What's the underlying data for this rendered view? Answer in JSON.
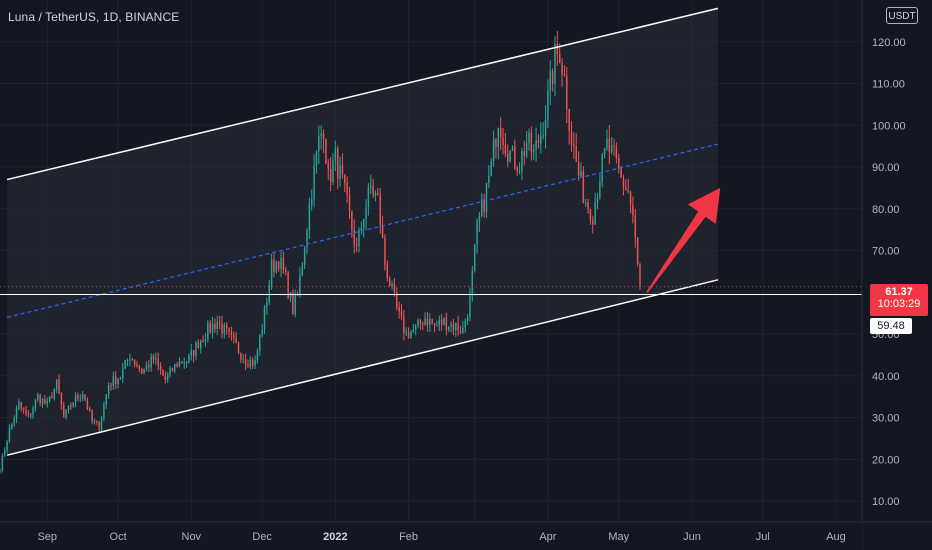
{
  "header": {
    "symbol_title": "Luna / TetherUS, 1D, BINANCE",
    "currency": "USDT"
  },
  "last_price": {
    "value": "61.37",
    "countdown": "10:03:29"
  },
  "horizontal_line": {
    "value": "59.48"
  },
  "colors": {
    "background": "#131722",
    "up_candle": "#26a69a",
    "down_candle": "#ef5350",
    "channel_lines": "#ffffff",
    "channel_fill": "#2a2e39",
    "midline": "#2962ff",
    "arrow": "#f23645",
    "price_line": "#f23645"
  },
  "chart_data": {
    "type": "candlestick",
    "title": "Luna / TetherUS, 1D, BINANCE",
    "y_unit": "USDT",
    "ylim": [
      5,
      130
    ],
    "y_ticks": [
      10,
      20,
      30,
      40,
      50,
      60,
      70,
      80,
      90,
      100,
      110,
      120
    ],
    "y_tick_labels": [
      "10.00",
      "20.00",
      "30.00",
      "40.00",
      "50.00",
      "60.00",
      "70.00",
      "80.00",
      "90.00",
      "100.00",
      "110.00",
      "120.00"
    ],
    "x_range": [
      "2021-08-12",
      "2022-08-12"
    ],
    "x_ticks": [
      "2021-09-01",
      "2021-10-01",
      "2021-11-01",
      "2021-12-01",
      "2022-01-01",
      "2022-02-01",
      "2022-03-01",
      "2022-04-01",
      "2022-05-01",
      "2022-06-01",
      "2022-07-01",
      "2022-08-01"
    ],
    "x_tick_labels": [
      "Sep",
      "Oct",
      "Nov",
      "Dec",
      "2022",
      "Feb",
      "",
      "Apr",
      "May",
      "Jun",
      "Jul",
      "Aug"
    ],
    "price_anchors": [
      [
        "2021-08-12",
        18
      ],
      [
        "2021-08-16",
        27
      ],
      [
        "2021-08-20",
        33
      ],
      [
        "2021-08-24",
        30
      ],
      [
        "2021-08-28",
        35
      ],
      [
        "2021-09-01",
        33
      ],
      [
        "2021-09-05",
        38
      ],
      [
        "2021-09-08",
        30
      ],
      [
        "2021-09-12",
        34
      ],
      [
        "2021-09-16",
        36
      ],
      [
        "2021-09-20",
        29
      ],
      [
        "2021-09-23",
        28
      ],
      [
        "2021-09-27",
        38
      ],
      [
        "2021-10-02",
        40
      ],
      [
        "2021-10-06",
        45
      ],
      [
        "2021-10-11",
        41
      ],
      [
        "2021-10-16",
        44
      ],
      [
        "2021-10-21",
        39
      ],
      [
        "2021-10-26",
        43
      ],
      [
        "2021-10-31",
        44
      ],
      [
        "2021-11-04",
        48
      ],
      [
        "2021-11-08",
        51
      ],
      [
        "2021-11-12",
        53
      ],
      [
        "2021-11-16",
        50
      ],
      [
        "2021-11-20",
        47
      ],
      [
        "2021-11-24",
        44
      ],
      [
        "2021-11-28",
        43
      ],
      [
        "2021-12-02",
        55
      ],
      [
        "2021-12-05",
        66
      ],
      [
        "2021-12-08",
        68
      ],
      [
        "2021-12-11",
        63
      ],
      [
        "2021-12-14",
        56
      ],
      [
        "2021-12-16",
        59
      ],
      [
        "2021-12-19",
        72
      ],
      [
        "2021-12-22",
        85
      ],
      [
        "2021-12-25",
        96
      ],
      [
        "2021-12-27",
        100
      ],
      [
        "2021-12-29",
        87
      ],
      [
        "2022-01-01",
        92
      ],
      [
        "2022-01-04",
        86
      ],
      [
        "2022-01-07",
        78
      ],
      [
        "2022-01-10",
        70
      ],
      [
        "2022-01-13",
        79
      ],
      [
        "2022-01-16",
        85
      ],
      [
        "2022-01-19",
        82
      ],
      [
        "2022-01-22",
        67
      ],
      [
        "2022-01-25",
        60
      ],
      [
        "2022-01-28",
        54
      ],
      [
        "2022-01-31",
        50
      ],
      [
        "2022-02-04",
        51
      ],
      [
        "2022-02-08",
        54
      ],
      [
        "2022-02-12",
        52
      ],
      [
        "2022-02-16",
        53
      ],
      [
        "2022-02-20",
        52
      ],
      [
        "2022-02-24",
        51
      ],
      [
        "2022-02-27",
        58
      ],
      [
        "2022-03-02",
        75
      ],
      [
        "2022-03-05",
        82
      ],
      [
        "2022-03-08",
        90
      ],
      [
        "2022-03-11",
        102
      ],
      [
        "2022-03-14",
        96
      ],
      [
        "2022-03-17",
        92
      ],
      [
        "2022-03-20",
        91
      ],
      [
        "2022-03-23",
        96
      ],
      [
        "2022-03-26",
        93
      ],
      [
        "2022-03-29",
        98
      ],
      [
        "2022-04-01",
        106
      ],
      [
        "2022-04-04",
        116
      ],
      [
        "2022-04-06",
        118
      ],
      [
        "2022-04-08",
        111
      ],
      [
        "2022-04-11",
        97
      ],
      [
        "2022-04-14",
        88
      ],
      [
        "2022-04-17",
        82
      ],
      [
        "2022-04-20",
        79
      ],
      [
        "2022-04-23",
        88
      ],
      [
        "2022-04-26",
        95
      ],
      [
        "2022-04-29",
        92
      ],
      [
        "2022-05-02",
        87
      ],
      [
        "2022-05-05",
        84
      ],
      [
        "2022-05-07",
        78
      ],
      [
        "2022-05-09",
        66
      ],
      [
        "2022-05-10",
        61.37
      ]
    ],
    "annotations": {
      "channel_upper_line": {
        "from": [
          "2021-08-15",
          87
        ],
        "to": [
          "2022-06-12",
          128
        ]
      },
      "channel_lower_line": {
        "from": [
          "2021-08-15",
          21
        ],
        "to": [
          "2022-06-12",
          63
        ]
      },
      "channel_midline": {
        "from": [
          "2021-08-15",
          54
        ],
        "to": [
          "2022-06-12",
          95.5
        ],
        "style": "dashed"
      },
      "horizontal_line": {
        "value": 59.48
      },
      "arrow": {
        "from": [
          "2022-05-13",
          60
        ],
        "to": [
          "2022-06-13",
          85
        ]
      },
      "last_price_line": {
        "value": 61.37,
        "style": "dotted"
      }
    }
  }
}
